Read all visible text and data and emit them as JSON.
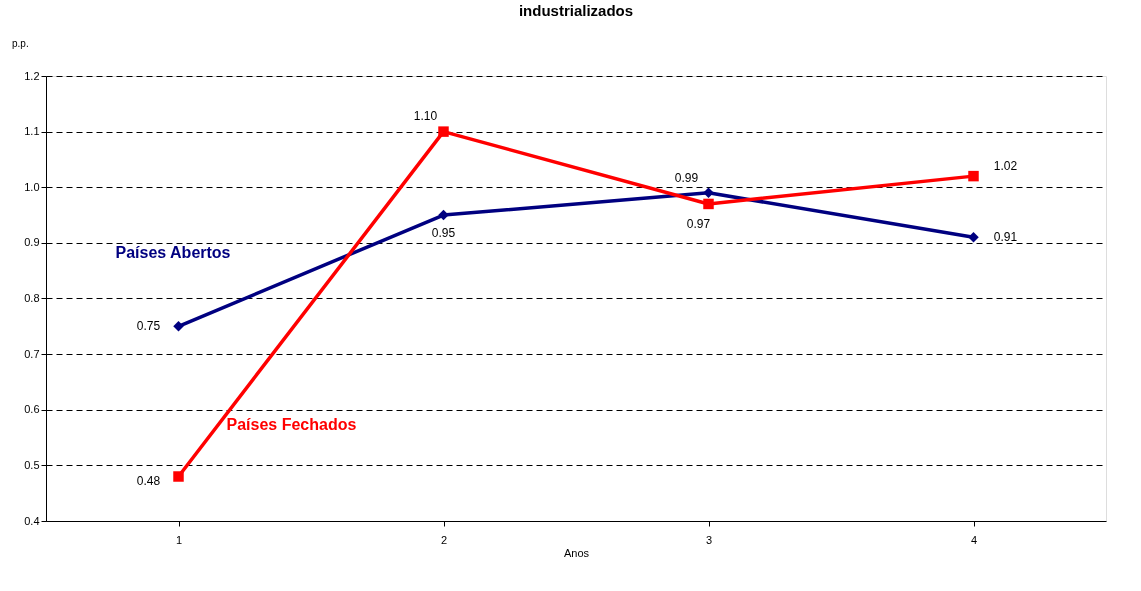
{
  "chart_data": {
    "type": "line",
    "title": "industrializados",
    "ylabel": "p.p.",
    "xlabel": "Anos",
    "categories": [
      "1",
      "2",
      "3",
      "4"
    ],
    "series": [
      {
        "name": "Países Abertos",
        "color": "#000080",
        "marker": "diamond",
        "values": [
          0.75,
          0.95,
          0.99,
          0.91
        ],
        "value_labels": [
          "0.75",
          "0.95",
          "0.99",
          "0.91"
        ]
      },
      {
        "name": "Países Fechados",
        "color": "#ff0000",
        "marker": "square",
        "values": [
          0.48,
          1.1,
          0.97,
          1.02
        ],
        "value_labels": [
          "0.48",
          "1.10",
          "0.97",
          "1.02"
        ]
      }
    ],
    "ylim": [
      0.4,
      1.2
    ],
    "yticks": [
      0.4,
      0.5,
      0.6,
      0.7,
      0.8,
      0.9,
      {
        "value": 1.0,
        "label": "1.0"
      },
      1.1,
      1.2
    ],
    "grid": "y",
    "line_style": "solid"
  }
}
